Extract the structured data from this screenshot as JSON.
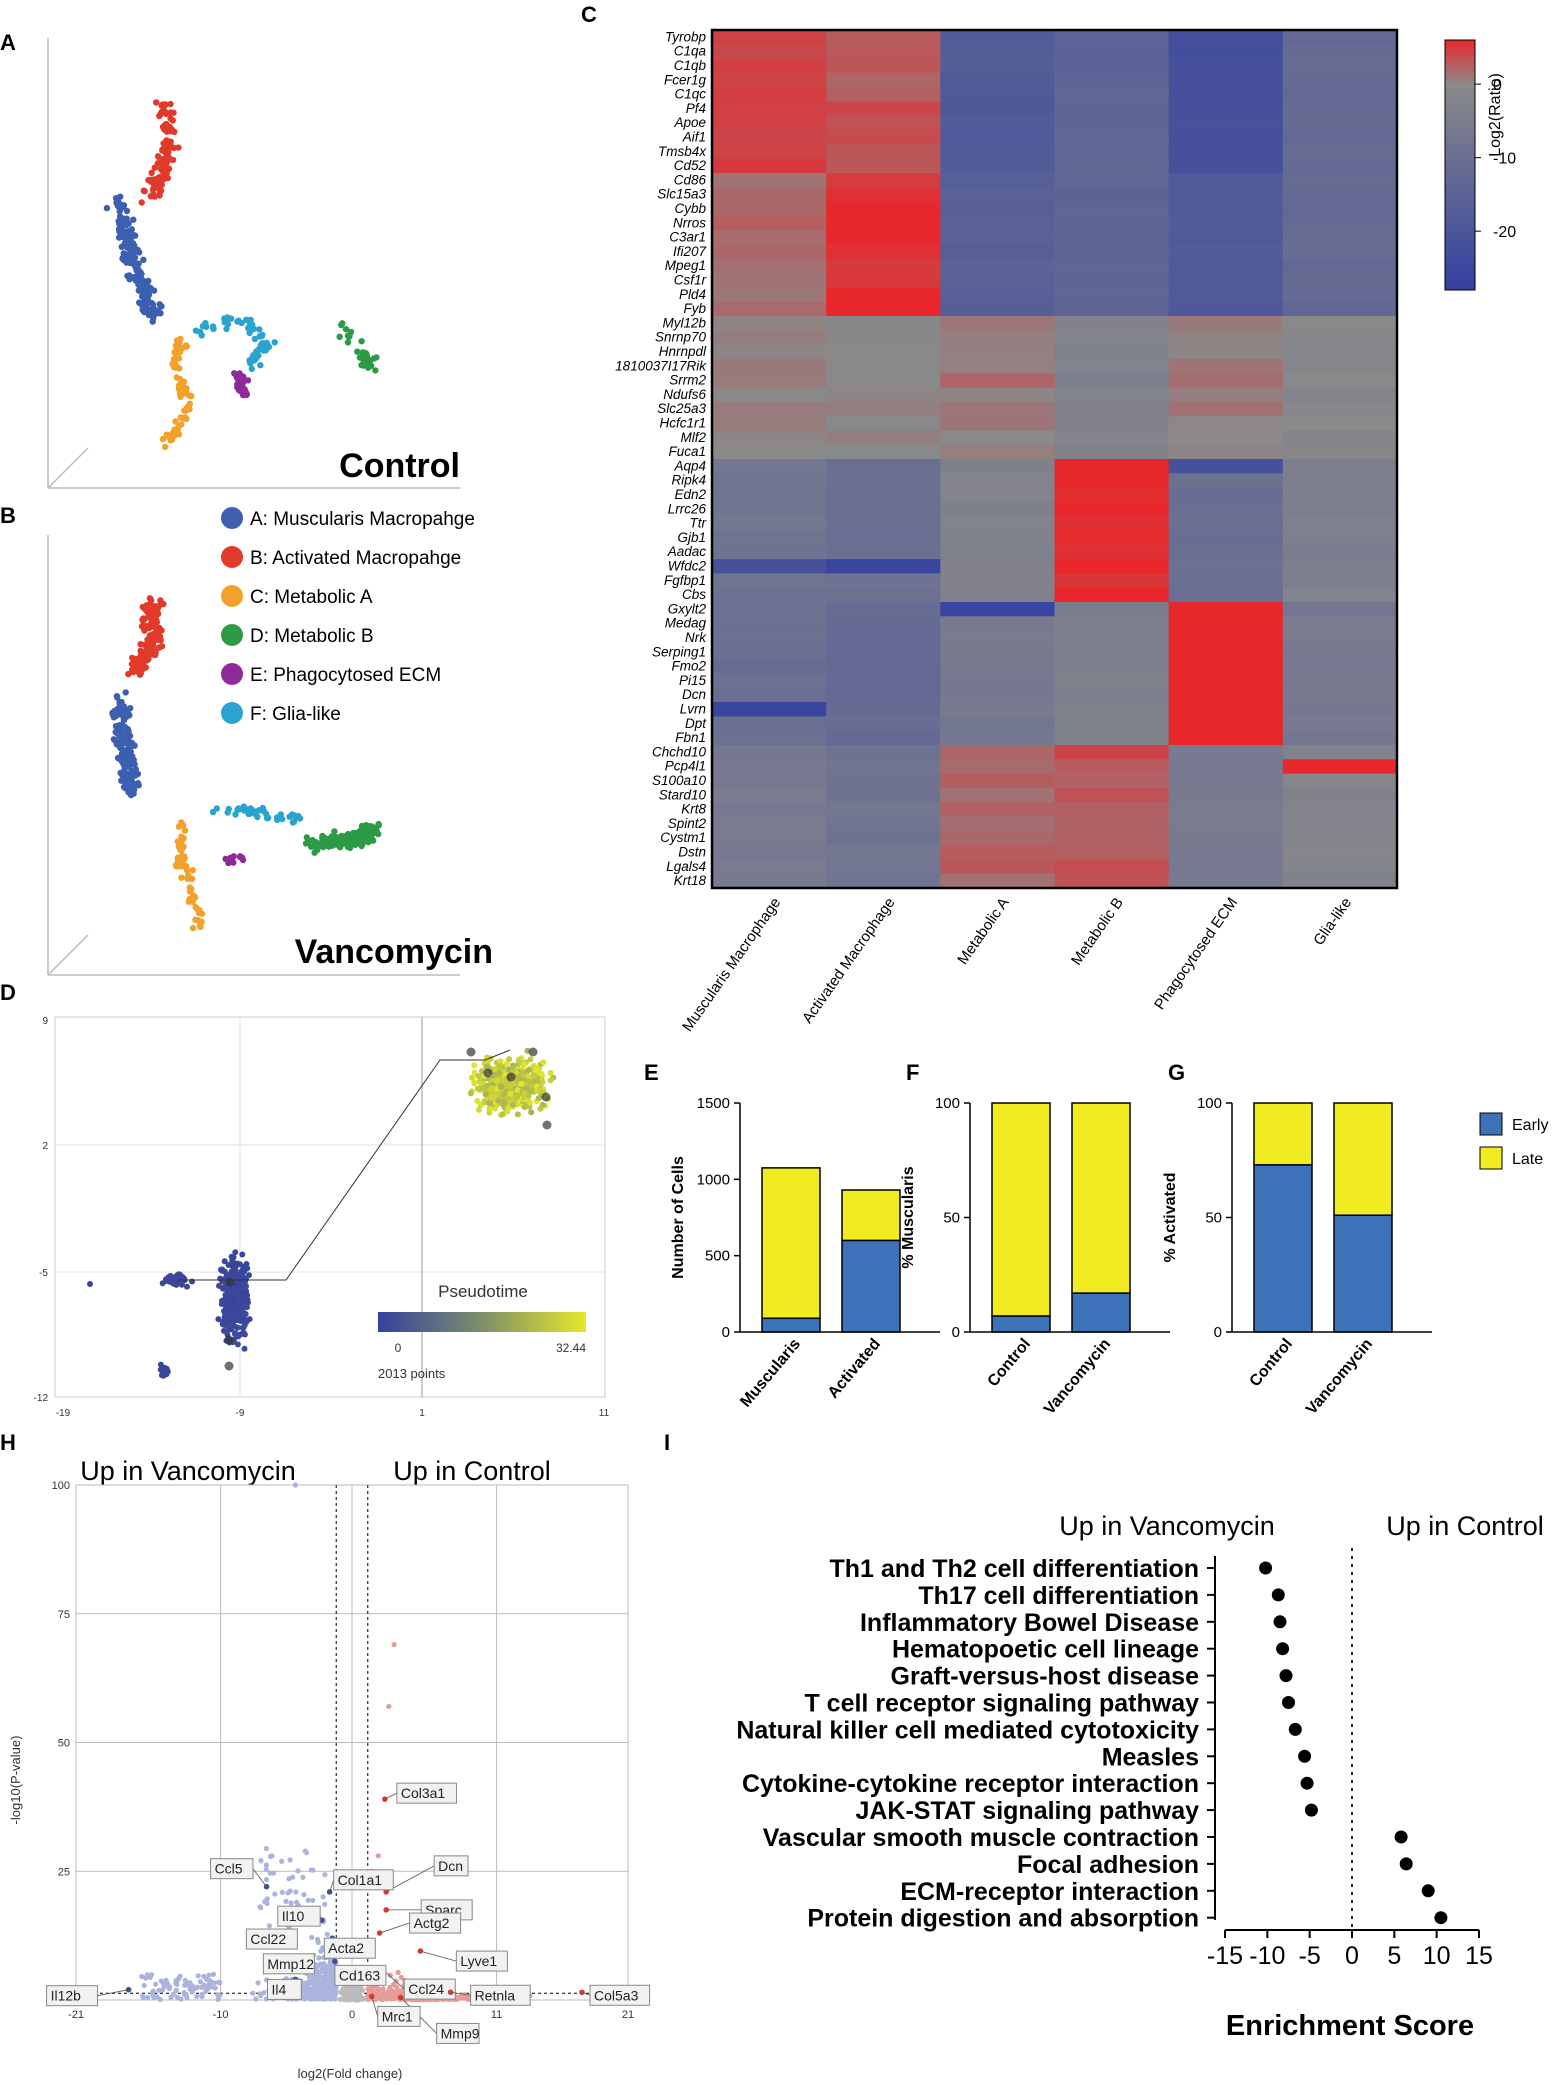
{
  "colors": {
    "muscularis": "#3d5fb0",
    "activated": "#e23a2a",
    "metabolic_a": "#f3a12b",
    "metabolic_b": "#2d9a45",
    "phagocytosed": "#8e2a99",
    "glia": "#2aa3cf",
    "early": "#3d72b8",
    "late": "#f1ec22",
    "heat_red": "#e8272c",
    "heat_grey": "#8a8a8a",
    "heat_blue": "#3340a0",
    "volcano_blue": "#aab4dd",
    "volcano_red": "#e69c97",
    "volcano_grey": "#bbbbbb"
  },
  "panels": {
    "A": "A",
    "B": "B",
    "C": "C",
    "D": "D",
    "E": "E",
    "F": "F",
    "G": "G",
    "H": "H",
    "I": "I"
  },
  "panel_a": {
    "label": "Control"
  },
  "panel_b": {
    "label": "Vancomycin",
    "legend": [
      {
        "key": "muscularis",
        "label": "A: Muscularis Macropahge"
      },
      {
        "key": "activated",
        "label": "B: Activated Macropahge"
      },
      {
        "key": "metabolic_a",
        "label": "C: Metabolic A"
      },
      {
        "key": "metabolic_b",
        "label": "D: Metabolic B"
      },
      {
        "key": "phagocytosed",
        "label": "E: Phagocytosed ECM"
      },
      {
        "key": "glia",
        "label": "F: Glia-like"
      }
    ]
  },
  "chart_data": [
    {
      "id": "C",
      "type": "heatmap",
      "title": "",
      "rows": [
        "Tyrobp",
        "C1qa",
        "C1qb",
        "Fcer1g",
        "C1qc",
        "Pf4",
        "Apoe",
        "Aif1",
        "Tmsb4x",
        "Cd52",
        "Cd86",
        "Slc15a3",
        "Cybb",
        "Nrros",
        "C3ar1",
        "Ifi207",
        "Mpeg1",
        "Csf1r",
        "Pld4",
        "Fyb",
        "Myl12b",
        "Snrnp70",
        "Hnrnpdl",
        "1810037I17Rik",
        "Srrm2",
        "Ndufs6",
        "Slc25a3",
        "Hcfc1r1",
        "Mlf2",
        "Fuca1",
        "Aqp4",
        "Ripk4",
        "Edn2",
        "Lrrc26",
        "Ttr",
        "Gjb1",
        "Aadac",
        "Wfdc2",
        "Fgfbp1",
        "Cbs",
        "Gxylt2",
        "Medag",
        "Nrk",
        "Serping1",
        "Fmo2",
        "Pi15",
        "Dcn",
        "Lvrn",
        "Dpt",
        "Fbn1",
        "Chchd10",
        "Pcp4l1",
        "S100a10",
        "Stard10",
        "Krt8",
        "Spint2",
        "Cystm1",
        "Dstn",
        "Lgals4",
        "Krt18"
      ],
      "columns": [
        "Muscularis Macrophage",
        "Activated Macrophage",
        "Metabolic A",
        "Metabolic B",
        "Phagocytosed ECM",
        "Glia-like"
      ],
      "colorbar": {
        "label": "Log2(Ratio)",
        "ticks": [
          0,
          -10,
          -20
        ],
        "range": [
          -28,
          6
        ]
      },
      "blocks": [
        {
          "rows": [
            0,
            9
          ],
          "values": [
            4,
            3,
            -18,
            -14,
            -22,
            -12
          ]
        },
        {
          "rows": [
            10,
            19
          ],
          "values": [
            2,
            6,
            -16,
            -14,
            -18,
            -12
          ]
        },
        {
          "rows": [
            20,
            29
          ],
          "values": [
            0,
            0,
            1,
            -3,
            1,
            -1
          ]
        },
        {
          "rows": [
            30,
            39
          ],
          "values": [
            -8,
            -10,
            -3,
            6,
            -10,
            -4
          ]
        },
        {
          "rows": [
            40,
            49
          ],
          "values": [
            -10,
            -12,
            -6,
            -4,
            7,
            -6
          ]
        },
        {
          "rows": [
            50,
            59
          ],
          "values": [
            -6,
            -8,
            2,
            3,
            -6,
            -2
          ]
        }
      ],
      "highlights": [
        {
          "row": 37,
          "col": 3,
          "value": 7
        },
        {
          "row": 37,
          "col": 1,
          "value": -26
        },
        {
          "row": 37,
          "col": 0,
          "value": -22
        },
        {
          "row": 40,
          "col": 2,
          "value": -26
        },
        {
          "row": 47,
          "col": 0,
          "value": -26
        },
        {
          "row": 30,
          "col": 4,
          "value": -22
        },
        {
          "row": 51,
          "col": 5,
          "value": 6
        }
      ]
    },
    {
      "id": "D",
      "type": "scatter",
      "xticks": [
        "-19",
        "-9",
        "1",
        "11"
      ],
      "yticks": [
        "9",
        "2",
        "-5",
        "-12"
      ],
      "legend_title": "Pseudotime",
      "colorbar_range": [
        "0",
        "32.44"
      ],
      "points_label": "2013 points"
    },
    {
      "id": "E",
      "type": "bar",
      "stacked": true,
      "categories": [
        "Muscularis",
        "Activated"
      ],
      "series": [
        {
          "name": "Early",
          "values": [
            90,
            600
          ]
        },
        {
          "name": "Late",
          "values": [
            985,
            330
          ]
        }
      ],
      "ylabel": "Number of Cells",
      "yticks": [
        0,
        500,
        1000,
        1500
      ],
      "ylim": [
        0,
        1500
      ]
    },
    {
      "id": "F",
      "type": "bar",
      "stacked": true,
      "categories": [
        "Control",
        "Vancomycin"
      ],
      "series": [
        {
          "name": "Early",
          "values": [
            7,
            17
          ]
        },
        {
          "name": "Late",
          "values": [
            93,
            83
          ]
        }
      ],
      "ylabel": "% Muscularis",
      "yticks": [
        0,
        50,
        100
      ],
      "ylim": [
        0,
        100
      ]
    },
    {
      "id": "G",
      "type": "bar",
      "stacked": true,
      "categories": [
        "Control",
        "Vancomycin"
      ],
      "series": [
        {
          "name": "Early",
          "values": [
            73,
            51
          ]
        },
        {
          "name": "Late",
          "values": [
            27,
            49
          ]
        }
      ],
      "ylabel": "% Activated",
      "yticks": [
        0,
        50,
        100
      ],
      "ylim": [
        0,
        100
      ],
      "legend": [
        "Early",
        "Late"
      ]
    },
    {
      "id": "H",
      "type": "scatter",
      "title_left": "Up in Vancomycin",
      "title_right": "Up in Control",
      "xlabel": "log2(Fold change)",
      "ylabel": "-log10(P-value)",
      "xticks": [
        -21,
        -10,
        0,
        11,
        21
      ],
      "yticks": [
        0,
        25,
        50,
        75,
        100
      ],
      "xlim": [
        -21,
        21
      ],
      "ylim": [
        0,
        100
      ],
      "labels": [
        {
          "text": "Col3a1",
          "x": 2.5,
          "y": 39,
          "side": "up"
        },
        {
          "text": "Dcn",
          "x": 2.6,
          "y": 21,
          "side": "up"
        },
        {
          "text": "Sparc",
          "x": 2.6,
          "y": 17.5,
          "side": "up"
        },
        {
          "text": "Actg2",
          "x": 2.1,
          "y": 13,
          "side": "up"
        },
        {
          "text": "Lyve1",
          "x": 5.2,
          "y": 9.5,
          "side": "up"
        },
        {
          "text": "Ccl24",
          "x": 2.3,
          "y": 6,
          "side": "up"
        },
        {
          "text": "Retnla",
          "x": 7.5,
          "y": 1.5,
          "side": "up"
        },
        {
          "text": "Col5a3",
          "x": 17.5,
          "y": 1.5,
          "side": "up"
        },
        {
          "text": "Mmp9",
          "x": 3.7,
          "y": 0.5,
          "side": "up"
        },
        {
          "text": "Mrc1",
          "x": 1.5,
          "y": 0.7,
          "side": "up"
        },
        {
          "text": "Ccl5",
          "x": -6.5,
          "y": 22,
          "side": "down"
        },
        {
          "text": "Col1a1",
          "x": -1.7,
          "y": 21,
          "side": "down"
        },
        {
          "text": "Il10",
          "x": -2.3,
          "y": 15.5,
          "side": "down"
        },
        {
          "text": "Ccl22",
          "x": -5.3,
          "y": 13,
          "side": "down"
        },
        {
          "text": "Acta2",
          "x": -1.5,
          "y": 12,
          "side": "down"
        },
        {
          "text": "Mmp12",
          "x": -3.7,
          "y": 8,
          "side": "down"
        },
        {
          "text": "Cd163",
          "x": -1.3,
          "y": 7.5,
          "side": "down"
        },
        {
          "text": "Il4",
          "x": -4.3,
          "y": 4,
          "side": "down"
        },
        {
          "text": "Il12b",
          "x": -17,
          "y": 2,
          "side": "down"
        }
      ]
    },
    {
      "id": "I",
      "type": "scatter",
      "title_left": "Up in Vancomycin",
      "title_right": "Up in Control",
      "xlabel": "Enrichment Score",
      "xticks": [
        -15,
        -10,
        -5,
        0,
        5,
        10,
        15
      ],
      "xlim": [
        -15,
        15
      ],
      "categories": [
        "Th1 and Th2 cell differentiation",
        "Th17 cell differentiation",
        "Inflammatory Bowel Disease",
        "Hematopoetic cell lineage",
        "Graft-versus-host disease",
        "T cell receptor signaling pathway",
        "Natural killer cell mediated cytotoxicity",
        "Measles",
        "Cytokine-cytokine receptor interaction",
        "JAK-STAT signaling pathway",
        "Vascular smooth muscle contraction",
        "Focal adhesion",
        "ECM-receptor interaction",
        "Protein digestion and absorption"
      ],
      "values": [
        -10.2,
        -8.7,
        -8.5,
        -8.2,
        -7.8,
        -7.5,
        -6.7,
        -5.6,
        -5.3,
        -4.8,
        5.8,
        6.4,
        9.0,
        10.5
      ]
    }
  ]
}
